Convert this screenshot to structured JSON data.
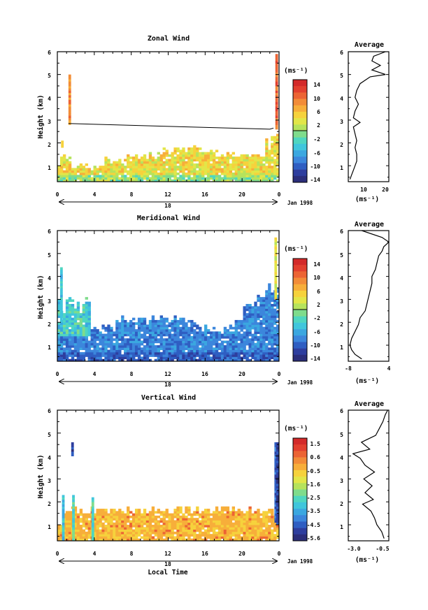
{
  "x_axis": {
    "label": "Local Time",
    "date_label": "Jan 1998",
    "day_label": "18",
    "ticks": [
      "0",
      "4",
      "8",
      "12",
      "16",
      "20",
      "0"
    ]
  },
  "chart_data": [
    {
      "type": "heatmap",
      "title": "Zonal Wind",
      "ylabel": "Height (km)",
      "xlim": [
        0,
        24
      ],
      "ylim": [
        0.3,
        6.0
      ],
      "yticks": [
        "1",
        "2",
        "3",
        "4",
        "5",
        "6"
      ],
      "colorbar": {
        "unit": "(ms⁻¹)",
        "ticks": [
          "14",
          "10",
          "6",
          "2",
          "-2",
          "-6",
          "-10",
          "-14"
        ],
        "range": [
          -16,
          16
        ]
      },
      "profile": {
        "title": "Average",
        "xlabel": "(ms⁻¹)",
        "xticks": [
          "10",
          "20"
        ],
        "xlim": [
          0,
          24
        ],
        "height": [
          0.4,
          0.6,
          0.8,
          1.0,
          1.2,
          1.5,
          1.8,
          2.1,
          2.4,
          2.7,
          2.9,
          3.1,
          3.4,
          3.7,
          4.0,
          4.3,
          4.6,
          4.9,
          5.0,
          5.2,
          5.4,
          5.6,
          5.8,
          6.0
        ],
        "values": [
          1,
          2,
          3,
          4,
          5,
          5,
          4,
          5,
          4,
          3,
          7,
          3,
          4,
          6,
          4,
          5,
          7,
          13,
          22,
          14,
          19,
          14,
          15,
          22
        ]
      }
    },
    {
      "type": "heatmap",
      "title": "Meridional Wind",
      "ylabel": "Height (km)",
      "xlim": [
        0,
        24
      ],
      "ylim": [
        0.3,
        6.0
      ],
      "yticks": [
        "1",
        "2",
        "3",
        "4",
        "5",
        "6"
      ],
      "colorbar": {
        "unit": "(ms⁻¹)",
        "ticks": [
          "14",
          "10",
          "6",
          "2",
          "-2",
          "-6",
          "-10",
          "-14"
        ],
        "range": [
          -16,
          16
        ]
      },
      "profile": {
        "title": "Average",
        "xlabel": "(ms⁻¹)",
        "xticks": [
          "-8",
          "4"
        ],
        "xlim": [
          -8,
          4
        ],
        "height": [
          0.4,
          0.6,
          0.8,
          1.0,
          1.3,
          1.6,
          1.9,
          2.2,
          2.5,
          2.8,
          3.1,
          3.4,
          3.7,
          4.0,
          4.3,
          4.6,
          4.9,
          5.1,
          5.3,
          5.5,
          5.7,
          6.0
        ],
        "values": [
          -4,
          -6,
          -7,
          -7.5,
          -7,
          -6,
          -5,
          -4.5,
          -3,
          -2.5,
          -2,
          -1.5,
          -1,
          -1,
          0,
          0.5,
          1,
          2,
          2.5,
          4,
          2,
          -4
        ]
      }
    },
    {
      "type": "heatmap",
      "title": "Vertical Wind",
      "ylabel": "Height (km)",
      "xlim": [
        0,
        24
      ],
      "ylim": [
        0.3,
        6.0
      ],
      "yticks": [
        "1",
        "2",
        "3",
        "4",
        "5",
        "6"
      ],
      "colorbar": {
        "unit": "(ms⁻¹)",
        "ticks": [
          "1.5",
          "0.6",
          "-0.5",
          "-1.6",
          "-2.5",
          "-3.5",
          "-4.5",
          "-5.6"
        ],
        "range": [
          -6.0,
          2.0
        ]
      },
      "profile": {
        "title": "Average",
        "xlabel": "(ms⁻¹)",
        "xticks": [
          "-3.0",
          "-0.5"
        ],
        "xlim": [
          -3.6,
          -0.2
        ],
        "height": [
          0.4,
          0.7,
          1.0,
          1.3,
          1.6,
          1.9,
          2.1,
          2.4,
          2.7,
          3.0,
          3.3,
          3.6,
          3.9,
          4.1,
          4.3,
          4.6,
          4.9,
          5.2,
          5.5,
          5.8,
          6.0
        ],
        "values": [
          -0.6,
          -0.8,
          -1.2,
          -1.4,
          -1.7,
          -2.4,
          -1.5,
          -2.2,
          -1.6,
          -2.3,
          -1.4,
          -2.2,
          -2.6,
          -3.2,
          -1.8,
          -2.5,
          -1.3,
          -1.0,
          -0.7,
          -0.5,
          -0.3
        ]
      }
    }
  ]
}
